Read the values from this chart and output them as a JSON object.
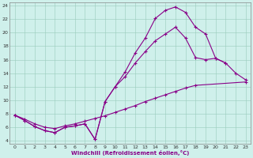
{
  "xlabel": "Windchill (Refroidissement éolien,°C)",
  "background_color": "#cff0eb",
  "line_color": "#880088",
  "xlim": [
    -0.5,
    23.5
  ],
  "ylim": [
    3.5,
    24.5
  ],
  "yticks": [
    4,
    6,
    8,
    10,
    12,
    14,
    16,
    18,
    20,
    22,
    24
  ],
  "xticks": [
    0,
    1,
    2,
    3,
    4,
    5,
    6,
    7,
    8,
    9,
    10,
    11,
    12,
    13,
    14,
    15,
    16,
    17,
    18,
    19,
    20,
    21,
    22,
    23
  ],
  "series1_x": [
    0,
    1,
    2,
    3,
    4,
    5,
    6,
    7,
    8,
    9,
    10,
    11,
    12,
    13,
    14,
    15,
    16,
    17,
    18,
    19,
    20,
    21
  ],
  "series1_y": [
    7.8,
    7.0,
    6.1,
    5.5,
    5.2,
    6.0,
    6.2,
    6.5,
    4.2,
    9.8,
    12.0,
    14.2,
    17.0,
    19.2,
    22.1,
    23.3,
    23.8,
    23.0,
    20.8,
    19.8,
    16.2,
    15.5
  ],
  "series2_x": [
    0,
    1,
    2,
    3,
    4,
    5,
    6,
    7,
    8,
    9,
    10,
    11,
    12,
    13,
    14,
    15,
    16,
    17,
    18,
    19,
    20,
    21,
    22,
    23
  ],
  "series2_y": [
    7.8,
    7.0,
    6.1,
    5.5,
    5.2,
    6.0,
    6.2,
    6.5,
    4.2,
    9.8,
    12.0,
    13.5,
    15.5,
    17.2,
    18.8,
    19.8,
    20.8,
    19.2,
    16.3,
    16.0,
    16.2,
    15.5,
    14.0,
    13.0
  ],
  "series3_x": [
    0,
    1,
    2,
    3,
    4,
    5,
    6,
    7,
    8,
    9,
    10,
    11,
    12,
    13,
    14,
    15,
    16,
    17,
    18,
    23
  ],
  "series3_y": [
    7.8,
    7.2,
    6.5,
    6.0,
    5.8,
    6.2,
    6.5,
    6.9,
    7.3,
    7.7,
    8.2,
    8.7,
    9.2,
    9.8,
    10.3,
    10.8,
    11.3,
    11.8,
    12.2,
    12.7
  ]
}
